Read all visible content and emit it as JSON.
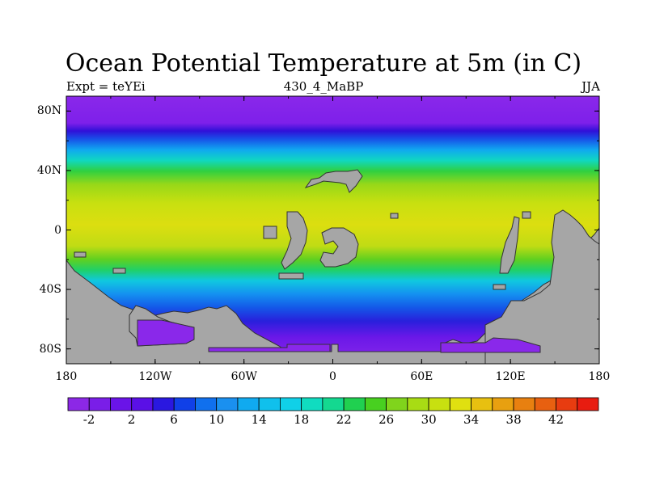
{
  "title": "Ocean Potential Temperature at 5m (in C)",
  "subtitle_left": "Expt = teYEi",
  "subtitle_center": "430_4_MaBP",
  "subtitle_right": "JJA",
  "x_ticks": [
    {
      "value": -180,
      "label": "180"
    },
    {
      "value": -120,
      "label": "120W"
    },
    {
      "value": -60,
      "label": "60W"
    },
    {
      "value": 0,
      "label": "0"
    },
    {
      "value": 60,
      "label": "60E"
    },
    {
      "value": 120,
      "label": "120E"
    },
    {
      "value": 180,
      "label": "180"
    }
  ],
  "y_ticks": [
    {
      "value": 80,
      "label": "80N"
    },
    {
      "value": 40,
      "label": "40N"
    },
    {
      "value": 0,
      "label": "0"
    },
    {
      "value": -40,
      "label": "40S"
    },
    {
      "value": -80,
      "label": "80S"
    }
  ],
  "colorbar": {
    "labels": [
      "-2",
      "2",
      "6",
      "10",
      "14",
      "18",
      "22",
      "26",
      "30",
      "34",
      "38",
      "42"
    ],
    "colors": [
      "#8c28e6",
      "#7a1ee8",
      "#6a14e8",
      "#5a10e6",
      "#2a18e0",
      "#1040e8",
      "#1070ee",
      "#1a90f0",
      "#10aaf0",
      "#10c0ec",
      "#10d0e8",
      "#10dcc0",
      "#14d890",
      "#20d050",
      "#48d020",
      "#80d41c",
      "#a8dc14",
      "#c8e010",
      "#e0e010",
      "#e8c010",
      "#e8a010",
      "#e88010",
      "#e86010",
      "#e83c10",
      "#e81c10"
    ]
  },
  "colors": {
    "land": "#a6a6a6",
    "polar": "#8a28ea"
  }
}
